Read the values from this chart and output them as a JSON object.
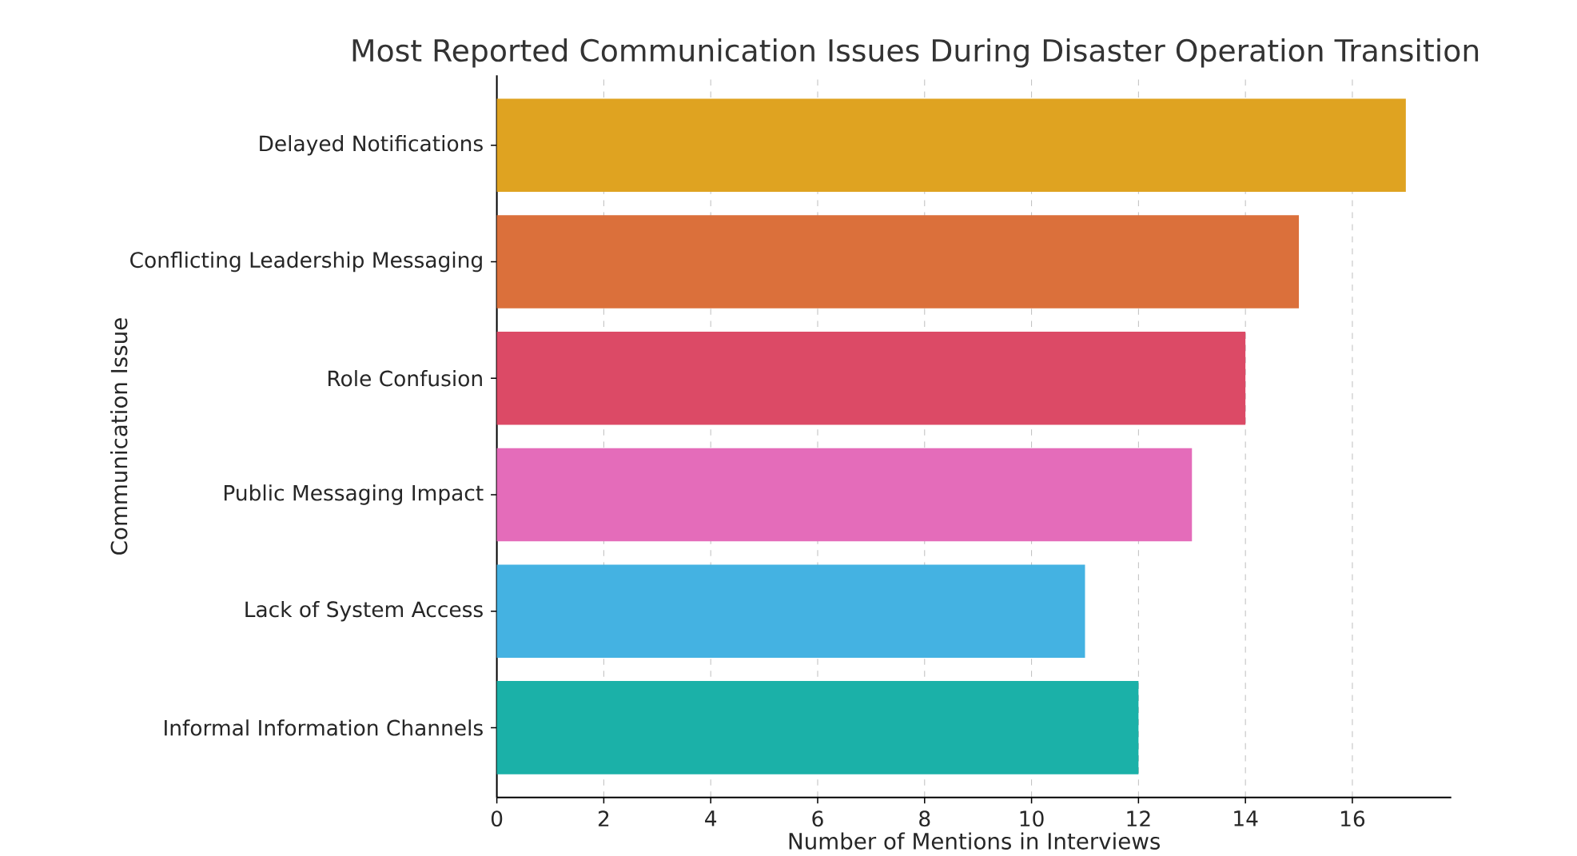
{
  "chart_data": {
    "type": "bar",
    "orientation": "horizontal",
    "title": "Most Reported Communication Issues During Disaster Operation Transition",
    "xlabel": "Number of Mentions in Interviews",
    "ylabel": "Communication Issue",
    "categories": [
      "Delayed Notifications",
      "Conflicting Leadership Messaging",
      "Role Confusion",
      "Public Messaging Impact",
      "Lack of System Access",
      "Informal Information Channels"
    ],
    "values": [
      17,
      15,
      14,
      13,
      11,
      12
    ],
    "colors": [
      "#dfa321",
      "#db703b",
      "#dc4a66",
      "#e46cba",
      "#44b2e2",
      "#1bb1a8"
    ],
    "xlim": [
      0,
      17.85
    ],
    "xticks": [
      0,
      2,
      4,
      6,
      8,
      10,
      12,
      14,
      16
    ],
    "grid": "x",
    "line_style": "dashed"
  }
}
